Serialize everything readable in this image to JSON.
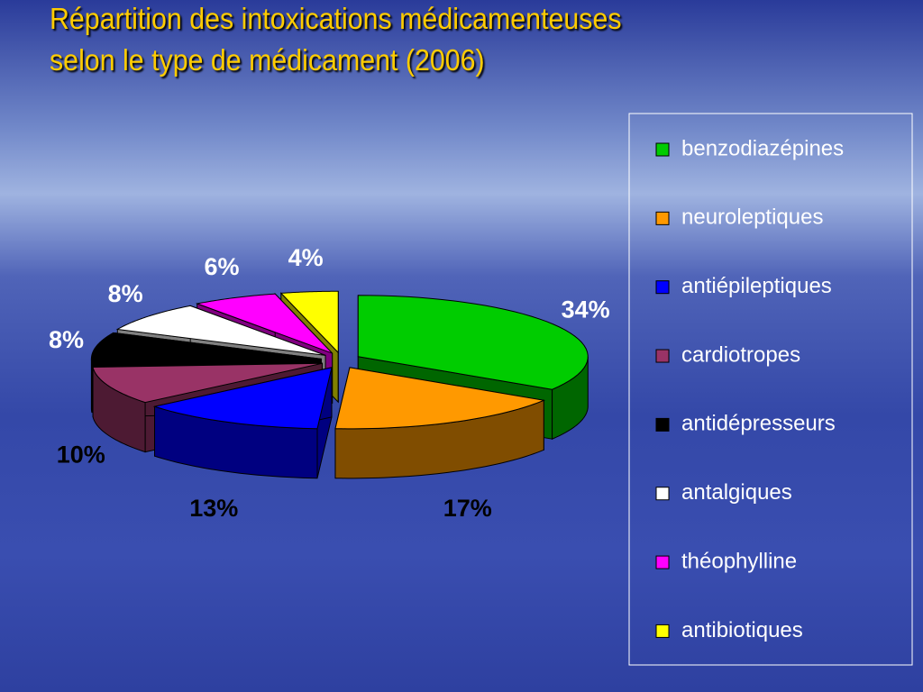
{
  "chart_data": {
    "type": "pie",
    "title": [
      "Répartition des intoxications médicamenteuses",
      "selon le type de médicament (2006)"
    ],
    "categories": [
      "benzodiazépines",
      "neuroleptiques",
      "antiépileptiques",
      "cardiotropes",
      "antidépresseurs",
      "antalgiques",
      "théophylline",
      "antibiotiques"
    ],
    "values": [
      34,
      17,
      13,
      10,
      8,
      8,
      6,
      4
    ],
    "value_labels": [
      "34%",
      "17%",
      "13%",
      "10%",
      "8%",
      "8%",
      "6%",
      "4%"
    ],
    "colors": [
      "#00cc00",
      "#ff9900",
      "#0000ff",
      "#993366",
      "#000000",
      "#ffffff",
      "#ff00ff",
      "#ffff00"
    ],
    "legend": "right"
  }
}
